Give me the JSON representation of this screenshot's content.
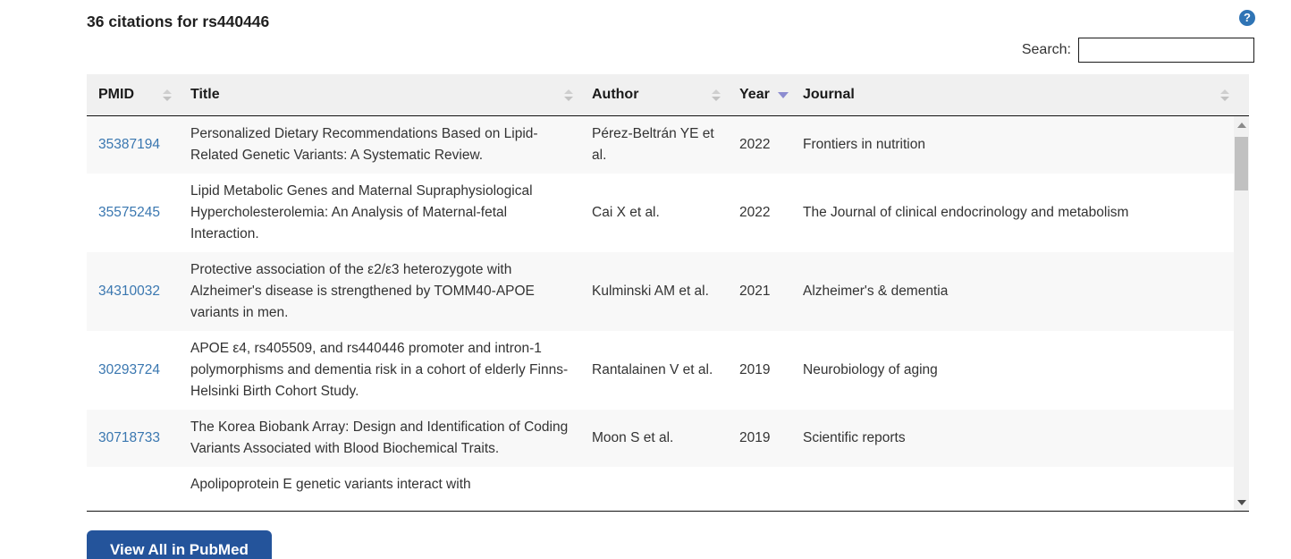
{
  "page": {
    "title": "36 citations for rs440446",
    "search_label": "Search:",
    "search_value": "",
    "view_all_button": "View All in PubMed",
    "help_icon_glyph": "?"
  },
  "colors": {
    "link_blue": "#3a77b0",
    "header_bg": "#f0f0f0",
    "stripe_bg": "#f8f8f8",
    "button_blue": "#24549b",
    "help_icon_blue": "#2f74b5",
    "active_sort_arrow": "#8c8cd0"
  },
  "table": {
    "columns": [
      {
        "label": "PMID",
        "sort": "both"
      },
      {
        "label": "Title",
        "sort": "both"
      },
      {
        "label": "Author",
        "sort": "both"
      },
      {
        "label": "Year",
        "sort": "desc"
      },
      {
        "label": "Journal",
        "sort": "both"
      }
    ],
    "rows": [
      {
        "pmid": "35387194",
        "title": "Personalized Dietary Recommendations Based on Lipid-Related Genetic Variants: A Systematic Review.",
        "author": "Pérez-Beltrán YE et al.",
        "year": "2022",
        "journal": "Frontiers in nutrition"
      },
      {
        "pmid": "35575245",
        "title": "Lipid Metabolic Genes and Maternal Supraphysiological Hypercholesterolemia: An Analysis of Maternal-fetal Interaction.",
        "author": "Cai X et al.",
        "year": "2022",
        "journal": "The Journal of clinical endocrinology and metabolism"
      },
      {
        "pmid": "34310032",
        "title": "Protective association of the ε2/ε3 heterozygote with Alzheimer's disease is strengthened by TOMM40-APOE variants in men.",
        "author": "Kulminski AM et al.",
        "year": "2021",
        "journal": "Alzheimer's & dementia"
      },
      {
        "pmid": "30293724",
        "title": "APOE ε4, rs405509, and rs440446 promoter and intron-1 polymorphisms and dementia risk in a cohort of elderly Finns-Helsinki Birth Cohort Study.",
        "author": "Rantalainen V et al.",
        "year": "2019",
        "journal": "Neurobiology of aging"
      },
      {
        "pmid": "30718733",
        "title": "The Korea Biobank Array: Design and Identification of Coding Variants Associated with Blood Biochemical Traits.",
        "author": "Moon S et al.",
        "year": "2019",
        "journal": "Scientific reports"
      },
      {
        "pmid": "",
        "title": "Apolipoprotein E genetic variants interact with",
        "author": "",
        "year": "",
        "journal": ""
      }
    ]
  }
}
